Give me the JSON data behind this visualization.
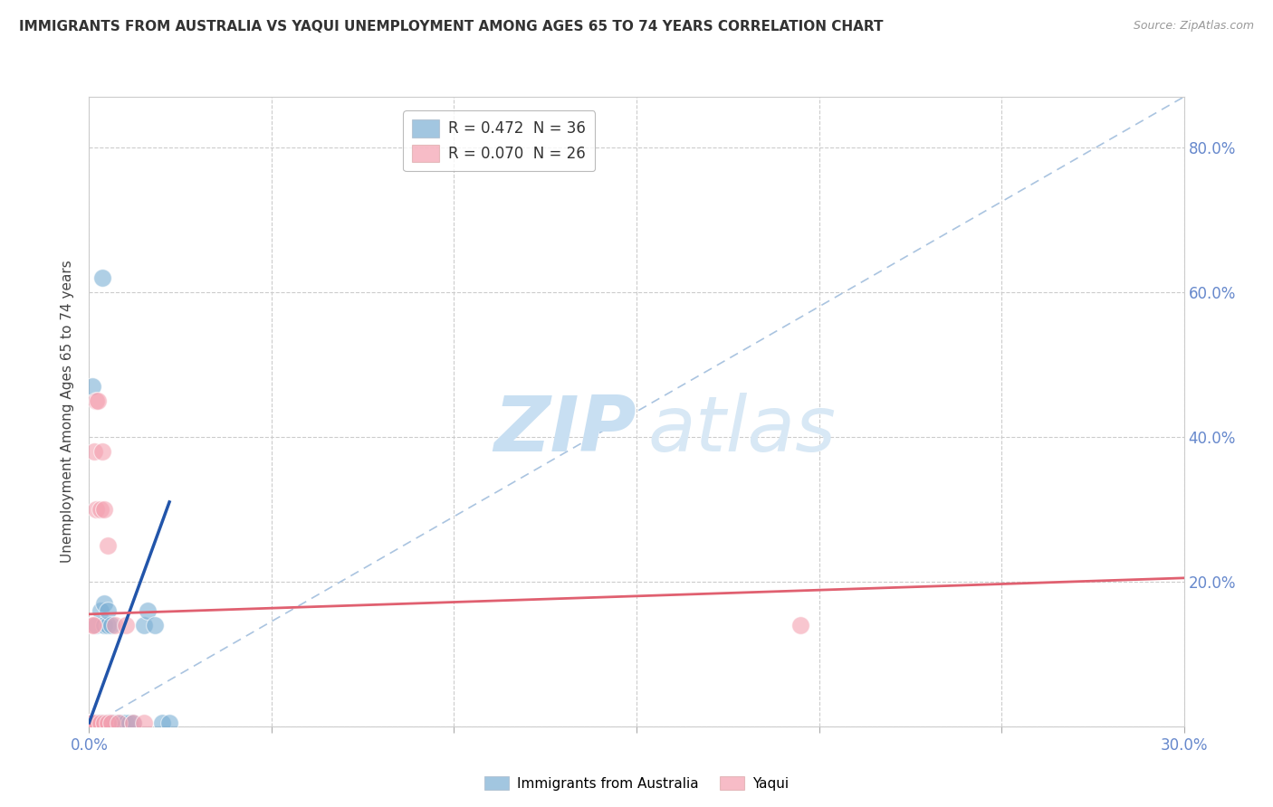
{
  "title": "IMMIGRANTS FROM AUSTRALIA VS YAQUI UNEMPLOYMENT AMONG AGES 65 TO 74 YEARS CORRELATION CHART",
  "source": "Source: ZipAtlas.com",
  "ylabel": "Unemployment Among Ages 65 to 74 years",
  "legend_entries": [
    "Immigrants from Australia",
    "Yaqui"
  ],
  "legend_r_n": [
    "R = 0.472  N = 36",
    "R = 0.070  N = 26"
  ],
  "blue_color": "#7bafd4",
  "pink_color": "#f4a0b0",
  "blue_scatter": [
    [
      0.0003,
      0.005
    ],
    [
      0.0004,
      0.005
    ],
    [
      0.0005,
      0.005
    ],
    [
      0.0006,
      0.005
    ],
    [
      0.0007,
      0.005
    ],
    [
      0.0008,
      0.005
    ],
    [
      0.0009,
      0.005
    ],
    [
      0.001,
      0.005
    ],
    [
      0.0012,
      0.005
    ],
    [
      0.0015,
      0.005
    ],
    [
      0.0017,
      0.005
    ],
    [
      0.002,
      0.005
    ],
    [
      0.002,
      0.14
    ],
    [
      0.0025,
      0.005
    ],
    [
      0.003,
      0.005
    ],
    [
      0.003,
      0.16
    ],
    [
      0.004,
      0.14
    ],
    [
      0.004,
      0.17
    ],
    [
      0.005,
      0.005
    ],
    [
      0.005,
      0.14
    ],
    [
      0.005,
      0.16
    ],
    [
      0.006,
      0.005
    ],
    [
      0.006,
      0.14
    ],
    [
      0.007,
      0.005
    ],
    [
      0.008,
      0.005
    ],
    [
      0.009,
      0.005
    ],
    [
      0.01,
      0.005
    ],
    [
      0.011,
      0.005
    ],
    [
      0.012,
      0.005
    ],
    [
      0.015,
      0.14
    ],
    [
      0.016,
      0.16
    ],
    [
      0.018,
      0.14
    ],
    [
      0.02,
      0.005
    ],
    [
      0.022,
      0.005
    ],
    [
      0.001,
      0.47
    ],
    [
      0.0035,
      0.62
    ]
  ],
  "pink_scatter": [
    [
      0.0003,
      0.005
    ],
    [
      0.0005,
      0.005
    ],
    [
      0.0007,
      0.005
    ],
    [
      0.0008,
      0.005
    ],
    [
      0.001,
      0.005
    ],
    [
      0.001,
      0.14
    ],
    [
      0.0012,
      0.14
    ],
    [
      0.0015,
      0.38
    ],
    [
      0.002,
      0.005
    ],
    [
      0.002,
      0.3
    ],
    [
      0.002,
      0.45
    ],
    [
      0.0025,
      0.45
    ],
    [
      0.003,
      0.005
    ],
    [
      0.003,
      0.3
    ],
    [
      0.0035,
      0.38
    ],
    [
      0.004,
      0.005
    ],
    [
      0.004,
      0.3
    ],
    [
      0.005,
      0.005
    ],
    [
      0.005,
      0.25
    ],
    [
      0.006,
      0.005
    ],
    [
      0.007,
      0.14
    ],
    [
      0.008,
      0.005
    ],
    [
      0.01,
      0.14
    ],
    [
      0.012,
      0.005
    ],
    [
      0.015,
      0.005
    ],
    [
      0.195,
      0.14
    ]
  ],
  "blue_trend_x": [
    0.0,
    0.022
  ],
  "blue_trend_y": [
    0.005,
    0.31
  ],
  "pink_trend_x": [
    0.0,
    0.3
  ],
  "pink_trend_y": [
    0.155,
    0.205
  ],
  "ref_line_x": [
    0.0,
    0.3
  ],
  "ref_line_y": [
    0.0,
    0.87
  ],
  "xlim": [
    0.0,
    0.3
  ],
  "ylim": [
    0.0,
    0.87
  ],
  "yticks": [
    0.0,
    0.2,
    0.4,
    0.6,
    0.8
  ],
  "ytick_labels_right": [
    "",
    "20.0%",
    "40.0%",
    "60.0%",
    "80.0%"
  ],
  "xticks_minor": [
    0.05,
    0.1,
    0.15,
    0.2,
    0.25
  ],
  "watermark_zip": "ZIP",
  "watermark_atlas": "atlas",
  "bg_color": "#ffffff",
  "grid_color": "#cccccc",
  "ref_line_color": "#aac4e0",
  "tick_color": "#6688cc"
}
